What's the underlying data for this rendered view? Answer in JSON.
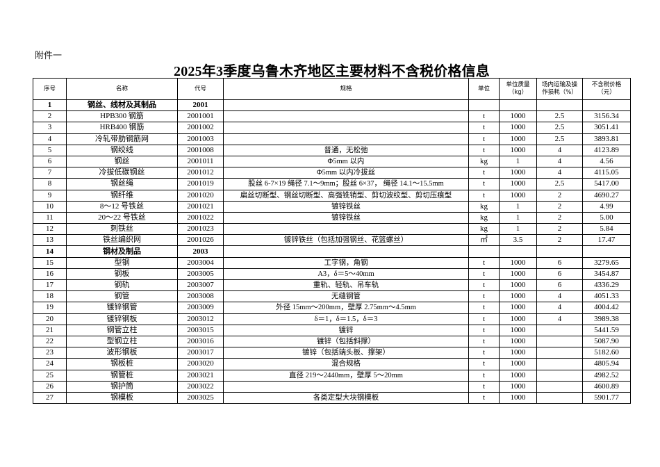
{
  "attachment_label": "附件一",
  "title": "2025年3季度乌鲁木齐地区主要材料不含税价格信息",
  "headers": [
    "序号",
    "名称",
    "代号",
    "规格",
    "单位",
    "单位质量（kg）",
    "场内运输及操作损耗（%）",
    "不含税价格（元）"
  ],
  "header_lines": {
    "mass": [
      "单位质量",
      "（kg）"
    ],
    "loss": [
      "场内运输及操",
      "作损耗（%）"
    ],
    "price": [
      "不含税价格",
      "（元）"
    ]
  },
  "rows": [
    {
      "no": "1",
      "name": "钢丝、线材及其制品",
      "code": "2001",
      "spec": "",
      "unit": "",
      "mass": "",
      "loss": "",
      "price": "",
      "category": true
    },
    {
      "no": "2",
      "name": "HPB300 钢筋",
      "code": "2001001",
      "spec": "",
      "unit": "t",
      "mass": "1000",
      "loss": "2.5",
      "price": "3156.34"
    },
    {
      "no": "3",
      "name": "HRB400 钢筋",
      "code": "2001002",
      "spec": "",
      "unit": "t",
      "mass": "1000",
      "loss": "2.5",
      "price": "3051.41"
    },
    {
      "no": "4",
      "name": "冷轧带肋钢筋网",
      "code": "2001003",
      "spec": "",
      "unit": "t",
      "mass": "1000",
      "loss": "2.5",
      "price": "3893.81"
    },
    {
      "no": "5",
      "name": "钢绞线",
      "code": "2001008",
      "spec": "普通，无松弛",
      "unit": "t",
      "mass": "1000",
      "loss": "4",
      "price": "4123.89"
    },
    {
      "no": "6",
      "name": "钢丝",
      "code": "2001011",
      "spec": "Φ5mm 以内",
      "unit": "kg",
      "mass": "1",
      "loss": "4",
      "price": "4.56"
    },
    {
      "no": "7",
      "name": "冷拔低碳钢丝",
      "code": "2001012",
      "spec": "Φ5mm 以内冷拔丝",
      "unit": "t",
      "mass": "1000",
      "loss": "4",
      "price": "4115.05"
    },
    {
      "no": "8",
      "name": "钢丝绳",
      "code": "2001019",
      "spec": "股丝 6-7×19 绳径 7.1～9mm；股丝 6×37， 绳径 14.1～15.5mm",
      "unit": "t",
      "mass": "1000",
      "loss": "2.5",
      "price": "5417.00"
    },
    {
      "no": "9",
      "name": "钢纤维",
      "code": "2001020",
      "spec": "扁丝切断型、钢丝切断型、高强铣销型、剪切波纹型、剪切压痕型",
      "unit": "t",
      "mass": "1000",
      "loss": "2",
      "price": "4690.27"
    },
    {
      "no": "10",
      "name": "8～12 号铁丝",
      "code": "2001021",
      "spec": "镀锌铁丝",
      "unit": "kg",
      "mass": "1",
      "loss": "2",
      "price": "4.99"
    },
    {
      "no": "11",
      "name": "20～22 号铁丝",
      "code": "2001022",
      "spec": "镀锌铁丝",
      "unit": "kg",
      "mass": "1",
      "loss": "2",
      "price": "5.00"
    },
    {
      "no": "12",
      "name": "刺铁丝",
      "code": "2001023",
      "spec": "",
      "unit": "kg",
      "mass": "1",
      "loss": "2",
      "price": "5.84"
    },
    {
      "no": "13",
      "name": "铁丝编织网",
      "code": "2001026",
      "spec": "镀锌铁丝（包括加强钢丝、花篮螺丝）",
      "unit": "㎡",
      "mass": "3.5",
      "loss": "2",
      "price": "17.47"
    },
    {
      "no": "14",
      "name": "钢材及制品",
      "code": "2003",
      "spec": "",
      "unit": "",
      "mass": "",
      "loss": "",
      "price": "",
      "category": true
    },
    {
      "no": "15",
      "name": "型钢",
      "code": "2003004",
      "spec": "工字钢，角钢",
      "unit": "t",
      "mass": "1000",
      "loss": "6",
      "price": "3279.65"
    },
    {
      "no": "16",
      "name": "钢板",
      "code": "2003005",
      "spec": "A3，δ＝5～40mm",
      "unit": "t",
      "mass": "1000",
      "loss": "6",
      "price": "3454.87"
    },
    {
      "no": "17",
      "name": "钢轨",
      "code": "2003007",
      "spec": "重轨、轻轨、吊车轨",
      "unit": "t",
      "mass": "1000",
      "loss": "6",
      "price": "4336.29"
    },
    {
      "no": "18",
      "name": "钢管",
      "code": "2003008",
      "spec": "无缝钢管",
      "unit": "t",
      "mass": "1000",
      "loss": "4",
      "price": "4051.33"
    },
    {
      "no": "19",
      "name": "镀锌钢管",
      "code": "2003009",
      "spec": "外径 15mm～200mm，壁厚 2.75mm～4.5mm",
      "unit": "t",
      "mass": "1000",
      "loss": "4",
      "price": "4004.42"
    },
    {
      "no": "20",
      "name": "镀锌钢板",
      "code": "2003012",
      "spec": "δ＝1，δ＝1.5，δ＝3",
      "unit": "t",
      "mass": "1000",
      "loss": "4",
      "price": "3989.38"
    },
    {
      "no": "21",
      "name": "钢管立柱",
      "code": "2003015",
      "spec": "镀锌",
      "unit": "t",
      "mass": "1000",
      "loss": "",
      "price": "5441.59"
    },
    {
      "no": "22",
      "name": "型钢立柱",
      "code": "2003016",
      "spec": "镀锌（包括斜撑）",
      "unit": "t",
      "mass": "1000",
      "loss": "",
      "price": "5087.90"
    },
    {
      "no": "23",
      "name": "波形钢板",
      "code": "2003017",
      "spec": "镀锌（包括端头板、撑架）",
      "unit": "t",
      "mass": "1000",
      "loss": "",
      "price": "5182.60"
    },
    {
      "no": "24",
      "name": "钢板桩",
      "code": "2003020",
      "spec": "混合规格",
      "unit": "t",
      "mass": "1000",
      "loss": "",
      "price": "4805.94"
    },
    {
      "no": "25",
      "name": "钢管桩",
      "code": "2003021",
      "spec": "直径 219～2440mm，壁厚 5～20mm",
      "unit": "t",
      "mass": "1000",
      "loss": "",
      "price": "4982.52"
    },
    {
      "no": "26",
      "name": "钢护筒",
      "code": "2003022",
      "spec": "",
      "unit": "t",
      "mass": "1000",
      "loss": "",
      "price": "4600.89"
    },
    {
      "no": "27",
      "name": "钢模板",
      "code": "2003025",
      "spec": "各类定型大块钢模板",
      "unit": "t",
      "mass": "1000",
      "loss": "",
      "price": "5901.77"
    }
  ]
}
